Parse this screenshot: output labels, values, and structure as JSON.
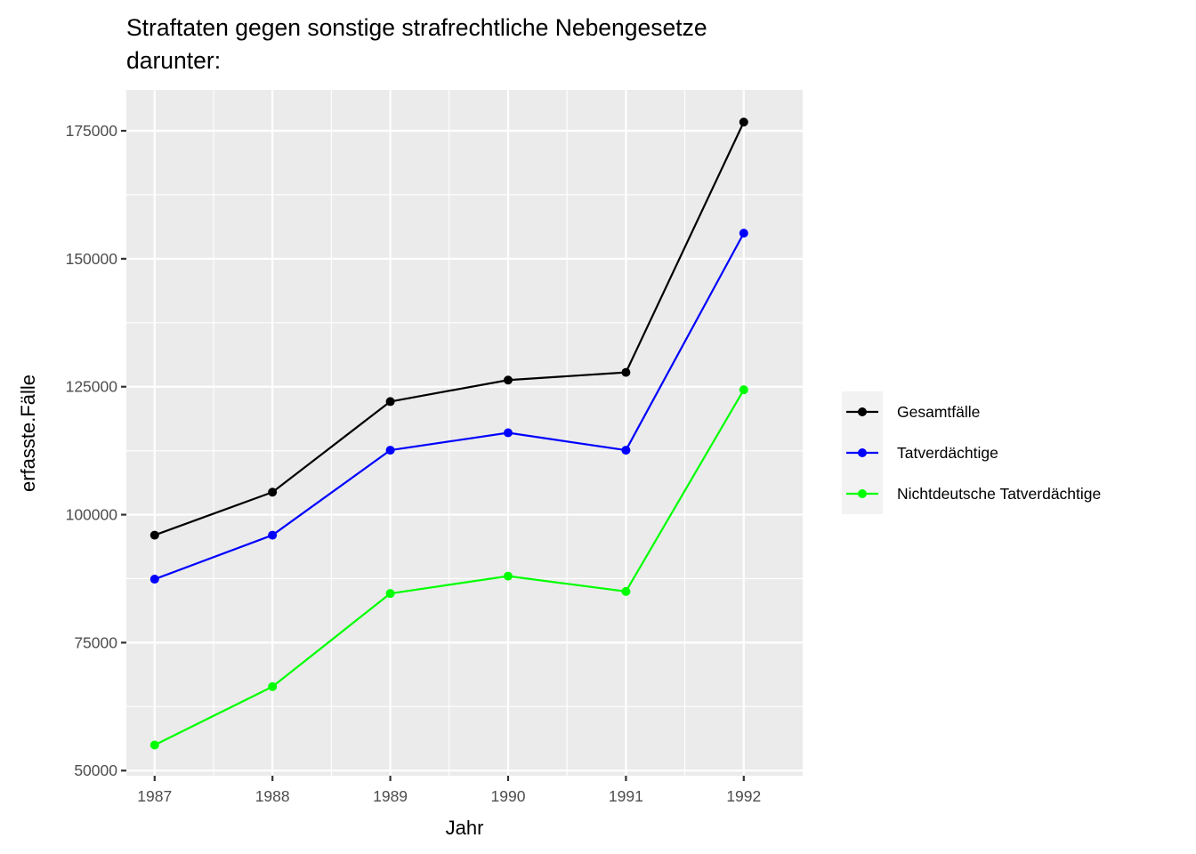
{
  "chart_data": {
    "type": "line",
    "title": "Straftaten gegen sonstige strafrechtliche Nebengesetze",
    "subtitle": "darunter:",
    "xlabel": "Jahr",
    "ylabel": "erfasste.Fälle",
    "x": [
      1987,
      1988,
      1989,
      1990,
      1991,
      1992
    ],
    "x_tick_labels": [
      "1987",
      "1988",
      "1989",
      "1990",
      "1991",
      "1992"
    ],
    "xlim": [
      1986.76,
      1992.5
    ],
    "ylim": [
      49000,
      183000
    ],
    "y_ticks": [
      50000,
      75000,
      100000,
      125000,
      150000,
      175000
    ],
    "y_tick_labels": [
      "50000",
      "75000",
      "100000",
      "125000",
      "150000",
      "175000"
    ],
    "grid": true,
    "legend_position": "right",
    "series": [
      {
        "name": "Gesamtfälle",
        "color": "#000000",
        "values": [
          96000,
          104400,
          122100,
          126300,
          127800,
          176700
        ]
      },
      {
        "name": "Tatverdächtige",
        "color": "#0000ff",
        "values": [
          87400,
          96000,
          112600,
          116000,
          112600,
          155000
        ]
      },
      {
        "name": "Nichtdeutsche Tatverdächtige",
        "color": "#00ff00",
        "values": [
          55000,
          66400,
          84600,
          88000,
          85000,
          124400
        ]
      }
    ]
  }
}
